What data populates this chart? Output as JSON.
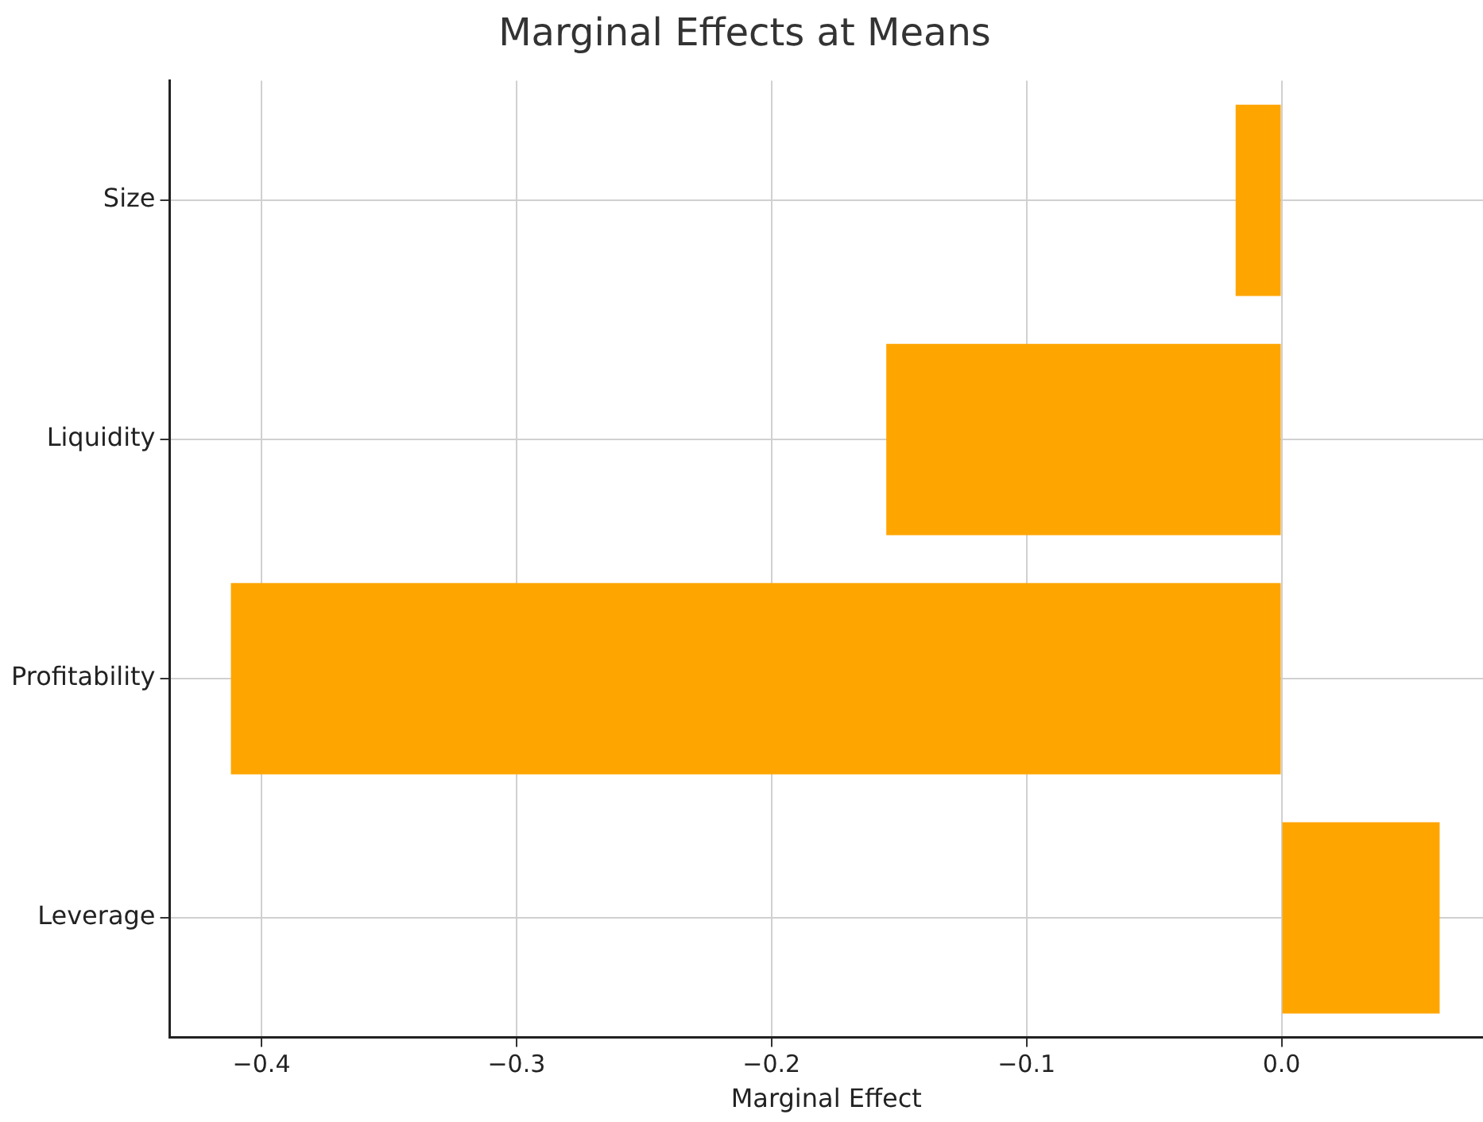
{
  "chart_data": {
    "type": "bar",
    "orientation": "horizontal",
    "title": "Marginal Effects at Means",
    "xlabel": "Marginal Effect",
    "categories": [
      "Size",
      "Liquidity",
      "Profitability",
      "Leverage"
    ],
    "values": [
      -0.018,
      -0.155,
      -0.412,
      0.062
    ],
    "color": "#ffa500",
    "xlim": [
      -0.436,
      0.079
    ],
    "xticks": [
      {
        "value": -0.4,
        "label": "−0.4"
      },
      {
        "value": -0.3,
        "label": "−0.3"
      },
      {
        "value": -0.2,
        "label": "−0.2"
      },
      {
        "value": -0.1,
        "label": "−0.1"
      },
      {
        "value": 0,
        "label": "0.0"
      }
    ],
    "grid": true
  }
}
